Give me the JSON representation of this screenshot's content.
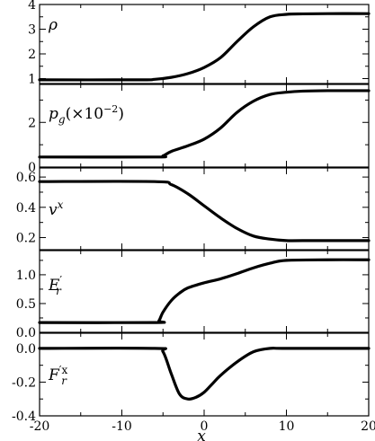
{
  "chart_data": [
    {
      "type": "line",
      "label": "ρ",
      "xlim": [
        -20,
        20
      ],
      "ylim": [
        0.8,
        4.0
      ],
      "yticks": [
        1,
        2,
        3,
        4
      ],
      "ytick_labels": [
        "1",
        "2",
        "3",
        "4"
      ],
      "x": [
        -20,
        -8,
        -6,
        -4,
        -2,
        0,
        2,
        4,
        6,
        8,
        10,
        12,
        15,
        20
      ],
      "y": [
        0.95,
        0.95,
        0.97,
        1.05,
        1.2,
        1.45,
        1.85,
        2.5,
        3.1,
        3.5,
        3.6,
        3.62,
        3.63,
        3.63
      ]
    },
    {
      "type": "line",
      "label_main": "p",
      "label_sub": "g",
      "label_rest": "(×10",
      "label_sup": "−2",
      "label_end": ")",
      "xlim": [
        -20,
        20
      ],
      "ylim": [
        0,
        3.7
      ],
      "yticks": [
        0,
        2
      ],
      "ytick_labels": [
        "0",
        "2"
      ],
      "x": [
        -20,
        -6,
        -5,
        -4,
        -2,
        0,
        2,
        4,
        6,
        8,
        10,
        12,
        15,
        20
      ],
      "y": [
        0.45,
        0.45,
        0.5,
        0.7,
        0.95,
        1.25,
        1.75,
        2.45,
        2.95,
        3.25,
        3.35,
        3.4,
        3.42,
        3.42
      ]
    },
    {
      "type": "line",
      "label_main": "v",
      "label_sup": "x",
      "xlim": [
        -20,
        20
      ],
      "ylim": [
        0.12,
        0.66
      ],
      "yticks": [
        0.2,
        0.4,
        0.6
      ],
      "ytick_labels": [
        "0.2",
        "0.4",
        "0.6"
      ],
      "x": [
        -20,
        -6,
        -4,
        -2,
        0,
        2,
        4,
        6,
        8,
        10,
        12,
        20
      ],
      "y": [
        0.57,
        0.57,
        0.55,
        0.49,
        0.41,
        0.33,
        0.26,
        0.21,
        0.19,
        0.18,
        0.18,
        0.18
      ]
    },
    {
      "type": "line",
      "label_main": "E",
      "label_sup": "′",
      "label_sub": "r",
      "xlim": [
        -20,
        20
      ],
      "ylim": [
        0,
        1.42
      ],
      "yticks": [
        0.0,
        0.5,
        1.0
      ],
      "ytick_labels": [
        "0.0",
        "0.5",
        "1.0"
      ],
      "x": [
        -20,
        -6,
        -5.5,
        -5,
        -4,
        -3,
        -2,
        0,
        2,
        4,
        6,
        8,
        10,
        15,
        20
      ],
      "y": [
        0.17,
        0.17,
        0.2,
        0.35,
        0.55,
        0.68,
        0.77,
        0.86,
        0.93,
        1.02,
        1.12,
        1.2,
        1.25,
        1.26,
        1.26
      ]
    },
    {
      "type": "line",
      "label_main": "F",
      "label_sup": "′x",
      "label_sub": "r",
      "xlim": [
        -20,
        20
      ],
      "ylim": [
        -0.4,
        0.09
      ],
      "yticks": [
        -0.4,
        -0.2,
        0.0
      ],
      "ytick_labels": [
        "-0.4",
        "-0.2",
        "0.0"
      ],
      "x": [
        -20,
        -6,
        -5,
        -4,
        -3,
        -2,
        -1,
        0,
        1,
        2,
        4,
        6,
        8,
        10,
        20
      ],
      "y": [
        0.0,
        0.0,
        -0.02,
        -0.15,
        -0.27,
        -0.3,
        -0.29,
        -0.26,
        -0.21,
        -0.16,
        -0.08,
        -0.02,
        0.0,
        0.0,
        0.0
      ]
    }
  ],
  "xaxis": {
    "label": "x",
    "ticks": [
      -20,
      -10,
      0,
      10,
      20
    ],
    "tick_labels": [
      "-20",
      "-10",
      "0",
      "10",
      "20"
    ]
  }
}
